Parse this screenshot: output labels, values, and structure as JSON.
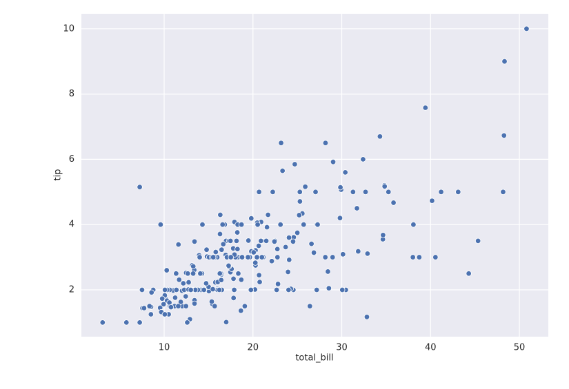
{
  "chart_data": {
    "type": "scatter",
    "x_label": "total_bill",
    "y_label": "tip",
    "xlim": [
      0.68,
      53.26
    ],
    "ylim": [
      0.565,
      10.46
    ],
    "xticks": [
      10,
      20,
      30,
      40,
      50
    ],
    "yticks": [
      2,
      4,
      6,
      8,
      10
    ],
    "grid": true,
    "series": [
      {
        "color": "#4c72b0",
        "x": [
          16.99,
          10.34,
          21.01,
          23.68,
          24.59,
          25.29,
          8.77,
          26.88,
          15.04,
          14.78,
          10.27,
          35.26,
          15.42,
          18.43,
          14.83,
          21.58,
          10.33,
          16.29,
          16.97,
          20.65,
          17.92,
          20.29,
          15.77,
          39.42,
          19.82,
          17.81,
          13.37,
          12.69,
          21.7,
          19.65,
          9.55,
          18.35,
          15.06,
          20.69,
          17.78,
          24.06,
          16.31,
          16.93,
          18.69,
          31.27,
          16.04,
          17.46,
          13.94,
          9.68,
          30.4,
          18.29,
          22.23,
          32.4,
          28.55,
          18.04,
          12.54,
          10.29,
          34.81,
          9.94,
          25.56,
          19.49,
          38.01,
          26.41,
          11.24,
          48.27,
          20.29,
          13.81,
          11.02,
          18.29,
          17.59,
          20.08,
          16.45,
          3.07,
          20.23,
          15.01,
          12.02,
          17.07,
          26.86,
          25.28,
          14.73,
          10.51,
          17.92,
          27.2,
          22.76,
          17.29,
          19.44,
          16.66,
          10.07,
          32.68,
          15.98,
          34.83,
          13.03,
          18.28,
          24.71,
          21.16,
          28.97,
          22.49,
          5.75,
          16.32,
          22.75,
          40.17,
          27.28,
          12.03,
          21.01,
          12.46,
          11.35,
          15.38,
          44.3,
          22.42,
          20.92,
          15.36,
          20.49,
          25.21,
          18.24,
          14.31,
          14.0,
          7.25,
          38.07,
          23.95,
          25.71,
          17.31,
          29.93,
          10.65,
          12.43,
          24.08,
          11.69,
          13.42,
          14.26,
          15.95,
          12.48,
          29.8,
          8.52,
          14.52,
          11.38,
          22.82,
          19.08,
          20.27,
          11.17,
          12.26,
          18.26,
          8.51,
          10.33,
          14.15,
          16.0,
          13.16,
          17.47,
          34.3,
          41.19,
          27.05,
          16.43,
          8.35,
          18.64,
          11.87,
          9.78,
          7.51,
          14.07,
          13.13,
          17.26,
          24.55,
          19.77,
          29.85,
          48.17,
          25.0,
          13.39,
          16.49,
          21.5,
          12.66,
          16.21,
          13.81,
          17.51,
          24.52,
          20.76,
          31.71,
          10.59,
          10.63,
          50.81,
          15.81,
          7.25,
          31.85,
          16.82,
          32.9,
          17.89,
          14.48,
          9.6,
          34.63,
          34.65,
          23.33,
          45.35,
          23.17,
          40.55,
          20.69,
          20.9,
          30.46,
          18.15,
          23.1,
          15.69,
          19.81,
          28.44,
          15.48,
          16.58,
          7.56,
          10.34,
          43.11,
          13.0,
          13.51,
          18.71,
          12.74,
          13.0,
          16.4,
          20.53,
          16.47,
          26.59,
          38.73,
          24.27,
          12.76,
          30.06,
          25.89,
          48.33,
          13.27,
          28.17,
          12.9,
          28.15,
          11.59,
          7.74,
          30.14,
          12.16,
          13.42,
          8.58,
          15.98,
          13.42,
          16.27,
          10.09,
          20.45,
          13.28,
          22.12,
          24.01,
          15.69,
          11.61,
          10.77,
          15.53,
          10.07,
          12.6,
          32.83,
          35.83,
          29.03,
          27.18,
          22.67,
          17.82,
          18.78
        ],
        "values": [
          1.01,
          1.66,
          3.5,
          3.31,
          3.61,
          4.71,
          2.0,
          3.12,
          1.96,
          3.23,
          1.71,
          5.0,
          1.57,
          3.0,
          3.02,
          3.92,
          1.67,
          3.71,
          3.5,
          3.35,
          4.08,
          2.75,
          2.23,
          7.58,
          3.18,
          2.34,
          2.0,
          2.0,
          4.3,
          3.0,
          1.45,
          2.5,
          3.0,
          2.45,
          3.27,
          3.6,
          2.0,
          3.07,
          2.31,
          5.0,
          2.24,
          2.54,
          3.06,
          1.32,
          5.6,
          3.0,
          5.0,
          6.0,
          2.05,
          3.0,
          2.5,
          2.6,
          5.2,
          1.56,
          4.34,
          3.51,
          3.0,
          1.5,
          1.76,
          6.73,
          3.21,
          2.0,
          1.98,
          3.76,
          2.64,
          3.15,
          2.47,
          1.0,
          2.01,
          2.09,
          1.97,
          3.0,
          3.14,
          5.0,
          2.2,
          1.25,
          3.08,
          4.0,
          3.0,
          2.71,
          3.0,
          3.4,
          1.83,
          5.0,
          2.03,
          5.17,
          2.0,
          4.0,
          5.85,
          3.0,
          3.0,
          3.5,
          1.0,
          4.3,
          3.25,
          4.73,
          4.0,
          1.5,
          3.0,
          1.5,
          2.5,
          3.0,
          2.5,
          3.48,
          4.08,
          1.64,
          4.06,
          4.29,
          3.76,
          4.0,
          3.0,
          1.0,
          4.0,
          2.55,
          4.0,
          3.5,
          5.07,
          1.5,
          1.8,
          2.92,
          2.31,
          1.68,
          2.5,
          2.0,
          2.52,
          4.2,
          1.48,
          2.0,
          2.0,
          2.18,
          1.5,
          2.83,
          1.5,
          2.0,
          3.25,
          1.25,
          2.0,
          2.0,
          2.0,
          2.75,
          3.5,
          6.7,
          5.0,
          5.0,
          2.3,
          1.5,
          1.36,
          1.63,
          1.73,
          2.0,
          2.5,
          2.0,
          2.74,
          2.0,
          2.0,
          5.14,
          5.0,
          3.75,
          2.61,
          2.0,
          3.5,
          2.5,
          2.0,
          2.0,
          3.0,
          3.48,
          2.24,
          4.5,
          1.61,
          2.0,
          10.0,
          3.16,
          5.15,
          3.18,
          4.0,
          3.11,
          2.0,
          2.0,
          4.0,
          3.55,
          3.68,
          5.65,
          3.5,
          6.5,
          3.0,
          5.0,
          3.5,
          2.0,
          3.5,
          4.0,
          1.5,
          4.19,
          2.56,
          2.02,
          4.0,
          1.44,
          2.0,
          5.0,
          2.0,
          2.0,
          4.0,
          2.01,
          2.0,
          2.5,
          4.0,
          3.23,
          3.41,
          3.0,
          2.03,
          2.23,
          2.0,
          5.16,
          9.0,
          2.5,
          6.5,
          1.1,
          3.0,
          1.5,
          1.44,
          3.09,
          2.2,
          3.48,
          1.92,
          3.0,
          1.58,
          2.5,
          2.0,
          3.0,
          2.72,
          2.88,
          2.0,
          3.0,
          3.39,
          1.47,
          3.0,
          1.25,
          1.0,
          1.17,
          4.67,
          5.92,
          2.0,
          2.0,
          1.75,
          3.0
        ]
      }
    ]
  }
}
